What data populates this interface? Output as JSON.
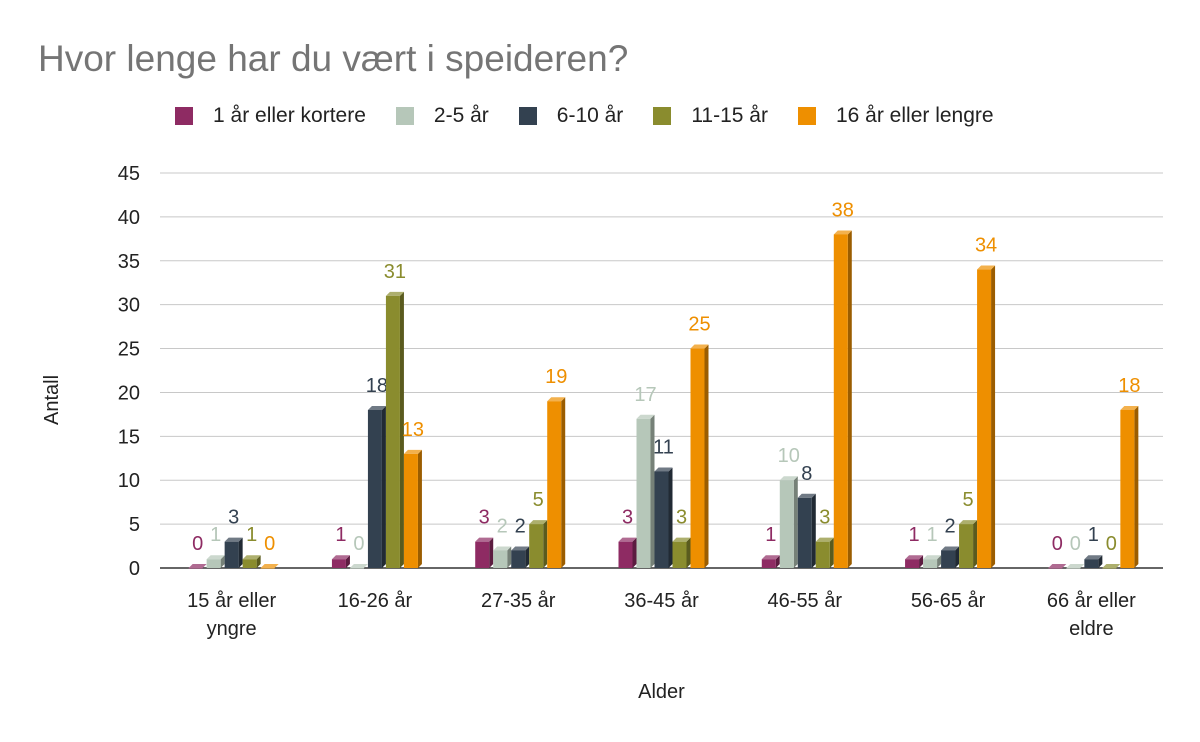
{
  "chart_data": {
    "type": "bar",
    "title": "Hvor lenge har du vært i speideren?",
    "xlabel": "Alder",
    "ylabel": "Antall",
    "ylim": [
      0,
      45
    ],
    "yticks": [
      "0",
      "5",
      "10",
      "15",
      "20",
      "25",
      "30",
      "35",
      "40",
      "45"
    ],
    "grid": true,
    "legend_position": "top",
    "categories": [
      [
        "15 år eller",
        "yngre"
      ],
      [
        "16-26 år"
      ],
      [
        "27-35 år"
      ],
      [
        "36-45 år"
      ],
      [
        "46-55 år"
      ],
      [
        "56-65 år"
      ],
      [
        "66 år eller",
        "eldre"
      ]
    ],
    "series": [
      {
        "name": "1 år eller kortere",
        "color": "#8e2b63",
        "values": [
          0,
          1,
          3,
          3,
          1,
          1,
          0
        ]
      },
      {
        "name": "2-5 år",
        "color": "#b6c7b9",
        "values": [
          1,
          0,
          2,
          17,
          10,
          1,
          0
        ]
      },
      {
        "name": "6-10 år",
        "color": "#334150",
        "values": [
          3,
          18,
          2,
          11,
          8,
          2,
          1
        ]
      },
      {
        "name": "11-15 år",
        "color": "#8a8c2e",
        "values": [
          1,
          31,
          5,
          3,
          3,
          5,
          0
        ]
      },
      {
        "name": "16 år eller lengre",
        "color": "#ee8f00",
        "values": [
          0,
          13,
          19,
          25,
          38,
          34,
          18
        ]
      }
    ]
  }
}
